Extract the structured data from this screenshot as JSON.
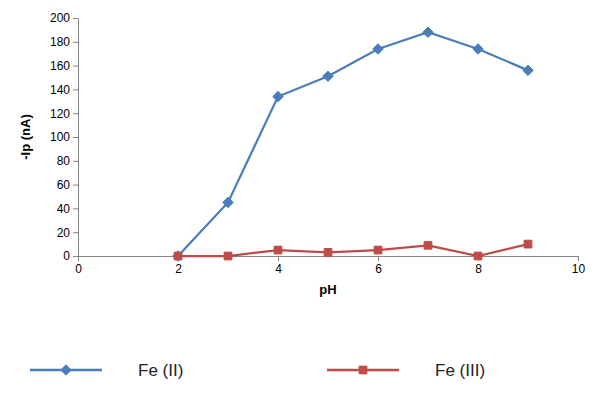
{
  "chart_data": {
    "type": "line",
    "x_label": "pH",
    "y_label": "-Ip (nA)",
    "xlim": [
      0,
      10
    ],
    "xticks": [
      0,
      2,
      4,
      6,
      8,
      10
    ],
    "ylim": [
      0,
      200
    ],
    "yticks": [
      0,
      20,
      40,
      60,
      80,
      100,
      120,
      140,
      160,
      180,
      200
    ],
    "grid": false,
    "legend": "bottom",
    "series": [
      {
        "name": "Fe (II)",
        "color": "#4a7ebb",
        "marker": "diamond",
        "line_style": "solid",
        "x": [
          2,
          3,
          4,
          5,
          6,
          7,
          8,
          9
        ],
        "values": [
          0,
          45,
          134,
          151,
          174,
          188,
          174,
          156
        ]
      },
      {
        "name": "Fe (III)",
        "color": "#be4b48",
        "marker": "square",
        "line_style": "solid",
        "x": [
          2,
          3,
          4,
          5,
          6,
          7,
          8,
          9
        ],
        "values": [
          0,
          0,
          5,
          3,
          5,
          9,
          0,
          10
        ]
      }
    ]
  }
}
